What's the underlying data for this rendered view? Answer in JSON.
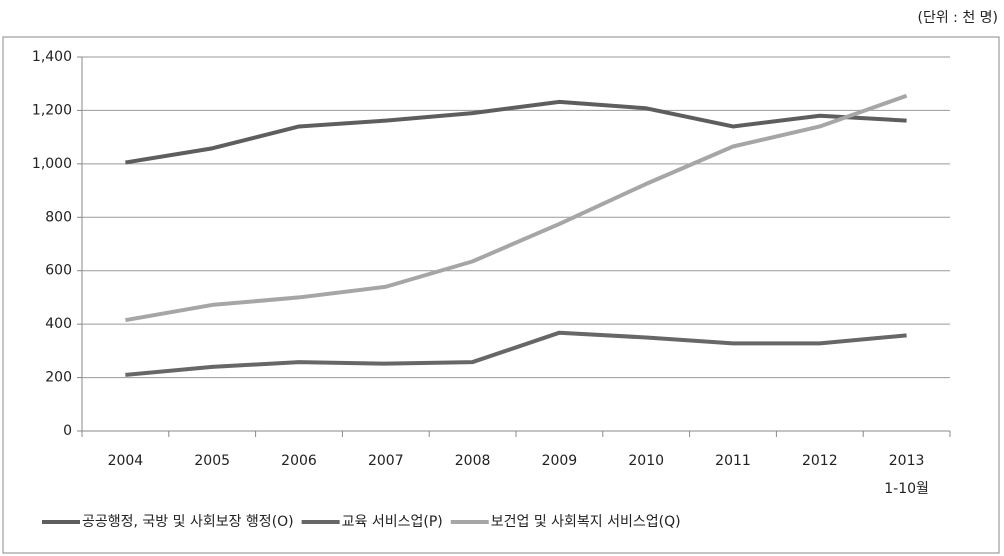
{
  "chart_data": {
    "type": "line",
    "unit_note": "(단위 : 천 명)",
    "categories": [
      "2004",
      "2005",
      "2006",
      "2007",
      "2008",
      "2009",
      "2010",
      "2011",
      "2012",
      "2013"
    ],
    "last_category_note": "1-10월",
    "series": [
      {
        "name": "공공행정, 국방 및 사회보장 행정(O)",
        "color": "#5e5e5e",
        "values": [
          1005,
          1058,
          1140,
          1162,
          1190,
          1232,
          1208,
          1140,
          1180,
          1162
        ]
      },
      {
        "name": "교육 서비스업(P)",
        "color": "#676767",
        "values": [
          210,
          240,
          258,
          252,
          258,
          368,
          350,
          328,
          328,
          358
        ]
      },
      {
        "name": "보건업 및 사회복지 서비스업(Q)",
        "color": "#a6a6a6",
        "values": [
          415,
          472,
          500,
          540,
          635,
          775,
          925,
          1065,
          1140,
          1255
        ]
      }
    ],
    "ylim": [
      0,
      1400
    ],
    "yticks": [
      0,
      200,
      400,
      600,
      800,
      {
        "value": 1000,
        "label": "1,000"
      },
      {
        "value": 1200,
        "label": "1,200"
      },
      {
        "value": 1400,
        "label": "1,400"
      }
    ],
    "grid": true,
    "legend": "bottom"
  }
}
